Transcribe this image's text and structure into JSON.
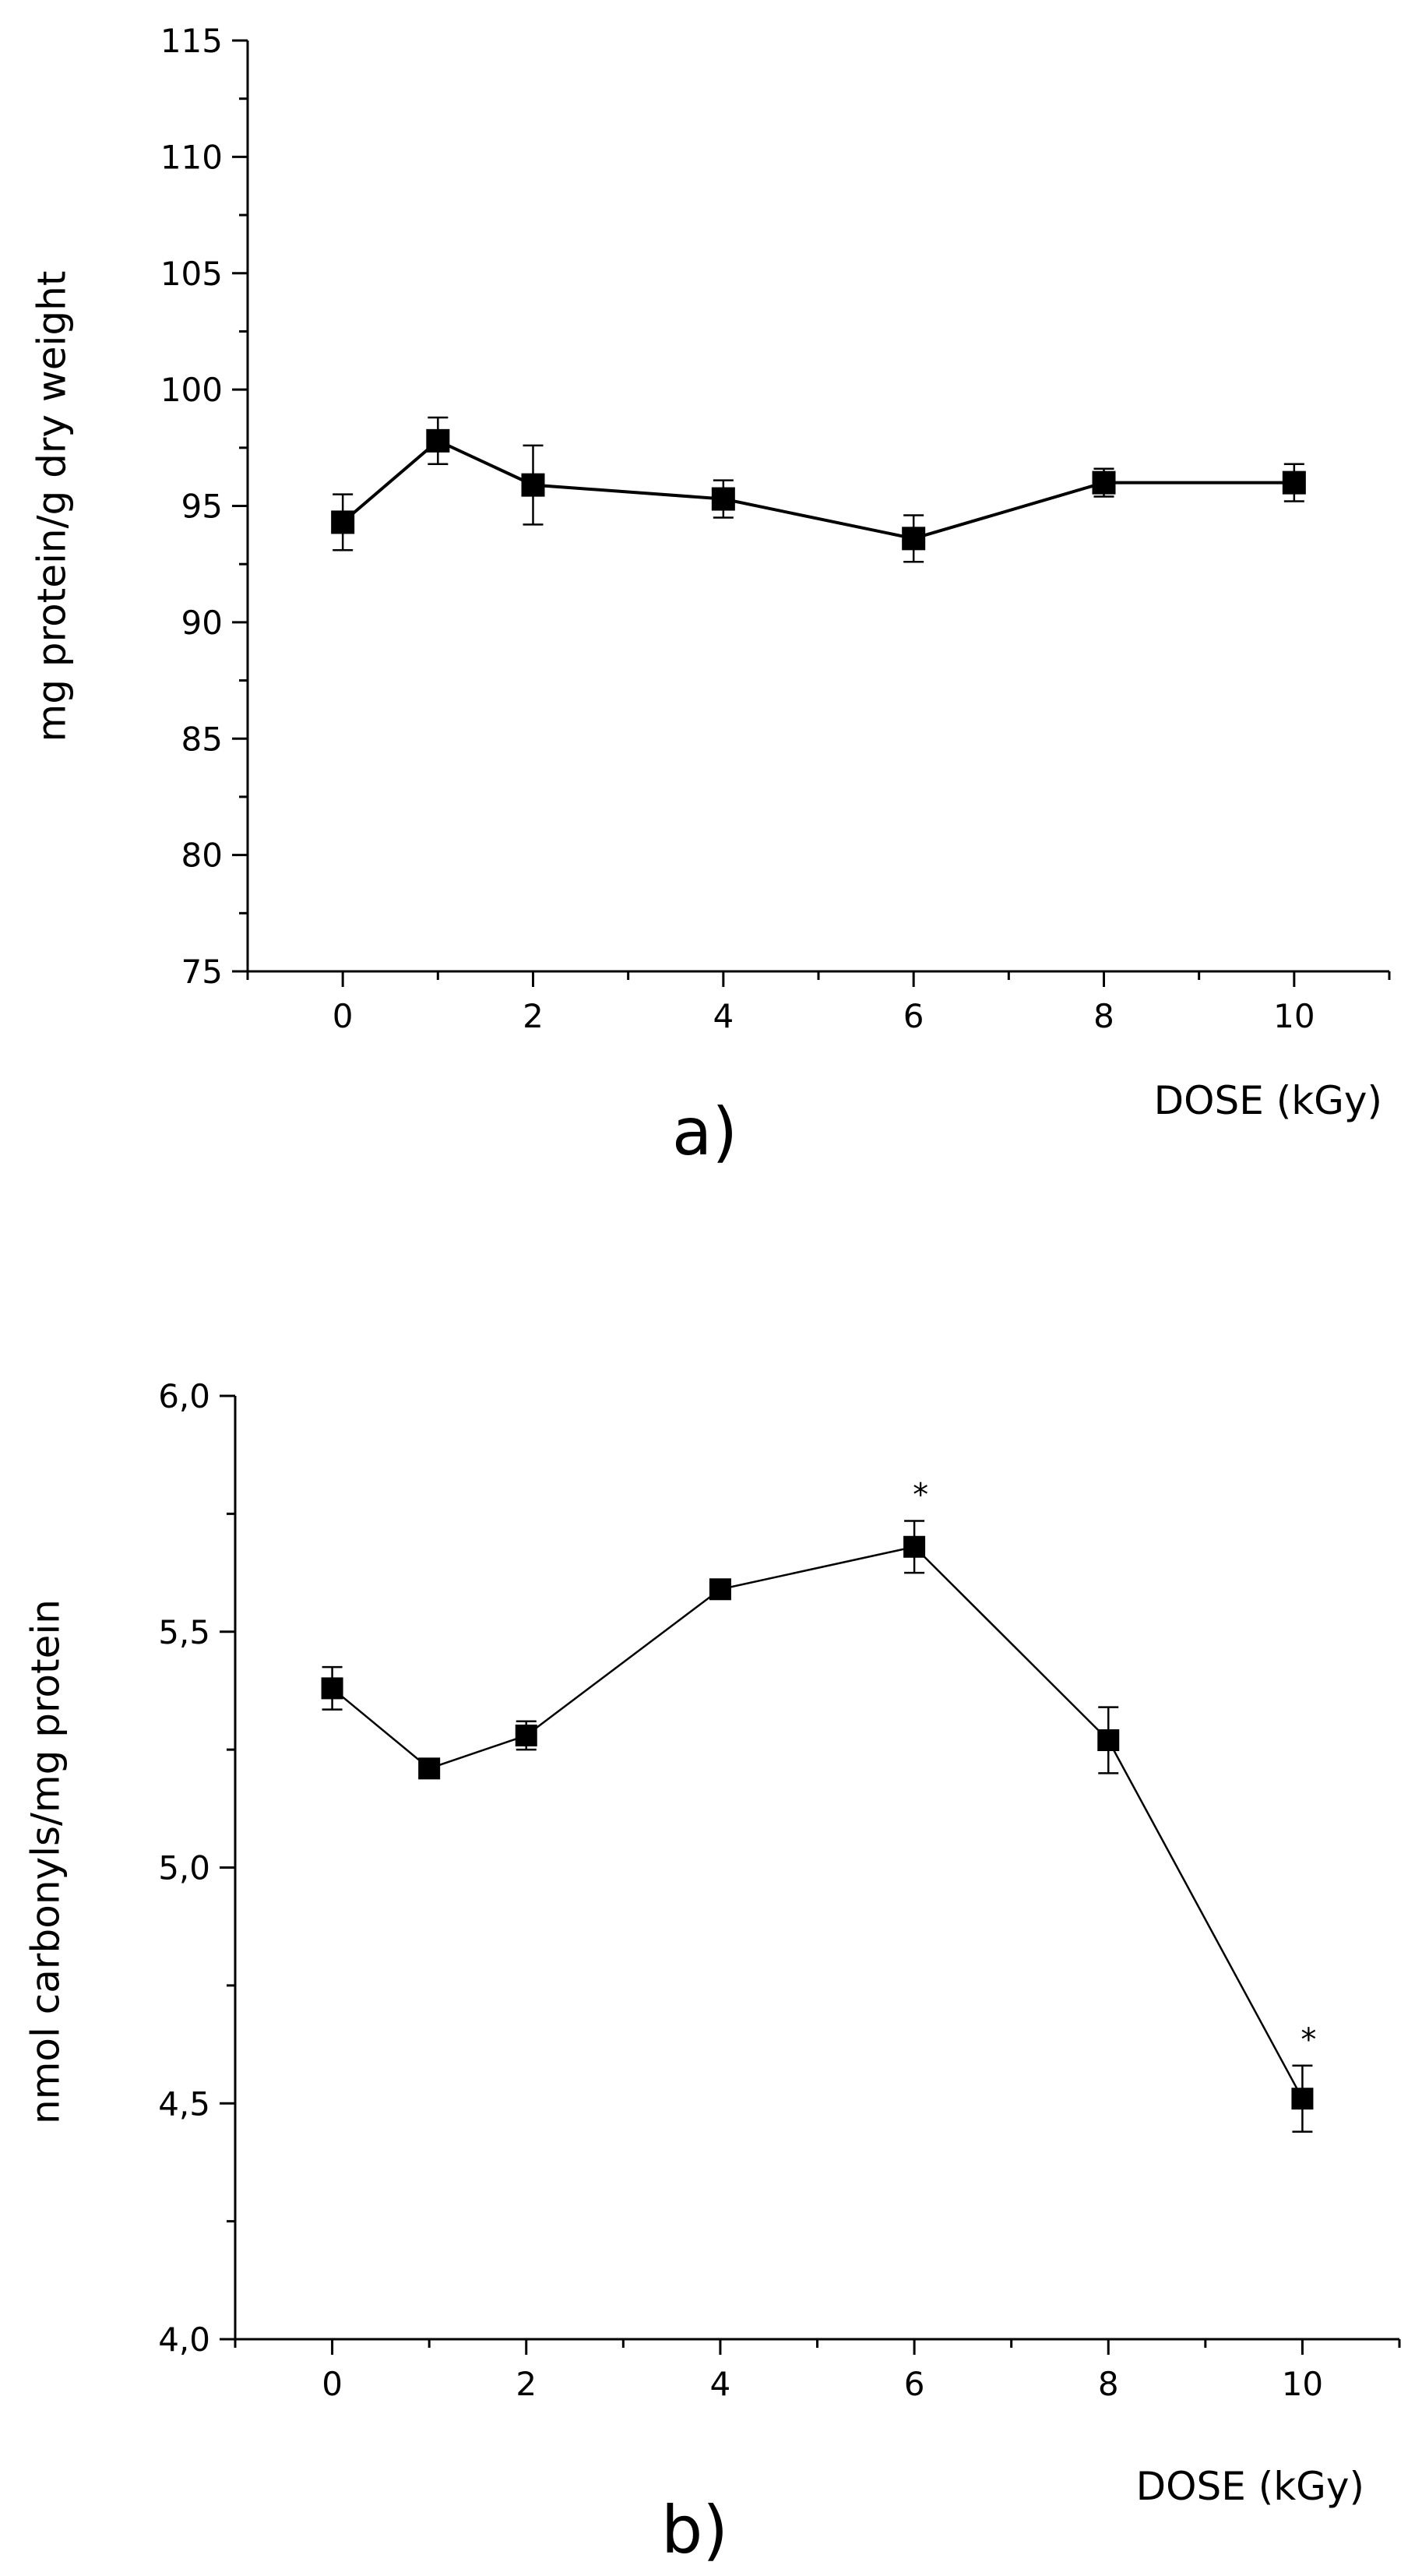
{
  "colors": {
    "line": "#000000",
    "marker": "#000000",
    "background": "#ffffff"
  },
  "chart_data": [
    {
      "type": "line",
      "panel_label": "a)",
      "xlabel": "DOSE (kGy)",
      "ylabel": "mg protein/g dry weight",
      "xlim": [
        -1,
        11
      ],
      "ylim": [
        75,
        115
      ],
      "x_ticks": [
        0,
        2,
        4,
        6,
        8,
        10
      ],
      "x_tick_labels": [
        "0",
        "2",
        "4",
        "6",
        "8",
        "10"
      ],
      "y_ticks": [
        75,
        80,
        85,
        90,
        95,
        100,
        105,
        110,
        115
      ],
      "y_tick_labels": [
        "75",
        "80",
        "85",
        "90",
        "95",
        "100",
        "105",
        "110",
        "115"
      ],
      "grid": false,
      "marker": "square",
      "x": [
        0,
        1,
        2,
        4,
        6,
        8,
        10
      ],
      "y": [
        94.3,
        97.8,
        95.9,
        95.3,
        93.6,
        96.0,
        96.0
      ],
      "error": [
        1.2,
        1.0,
        1.7,
        0.8,
        1.0,
        0.6,
        0.8
      ],
      "annotations": []
    },
    {
      "type": "line",
      "panel_label": "b)",
      "xlabel": "DOSE (kGy)",
      "ylabel": "nmol carbonyls/mg protein",
      "xlim": [
        -1,
        11
      ],
      "ylim": [
        4.0,
        6.0
      ],
      "x_ticks": [
        0,
        2,
        4,
        6,
        8,
        10
      ],
      "x_tick_labels": [
        "0",
        "2",
        "4",
        "6",
        "8",
        "10"
      ],
      "y_ticks": [
        4.0,
        4.5,
        5.0,
        5.5,
        6.0
      ],
      "y_tick_labels": [
        "4,0",
        "4,5",
        "5,0",
        "5,5",
        "6,0"
      ],
      "grid": false,
      "marker": "square",
      "x": [
        0,
        1,
        2,
        4,
        6,
        8,
        10
      ],
      "y": [
        5.38,
        5.21,
        5.28,
        5.59,
        5.68,
        5.27,
        4.51
      ],
      "error": [
        0.045,
        0.01,
        0.03,
        0.01,
        0.055,
        0.07,
        0.07
      ],
      "annotations": [
        {
          "x": 6,
          "text": "*"
        },
        {
          "x": 10,
          "text": "*"
        }
      ]
    }
  ]
}
